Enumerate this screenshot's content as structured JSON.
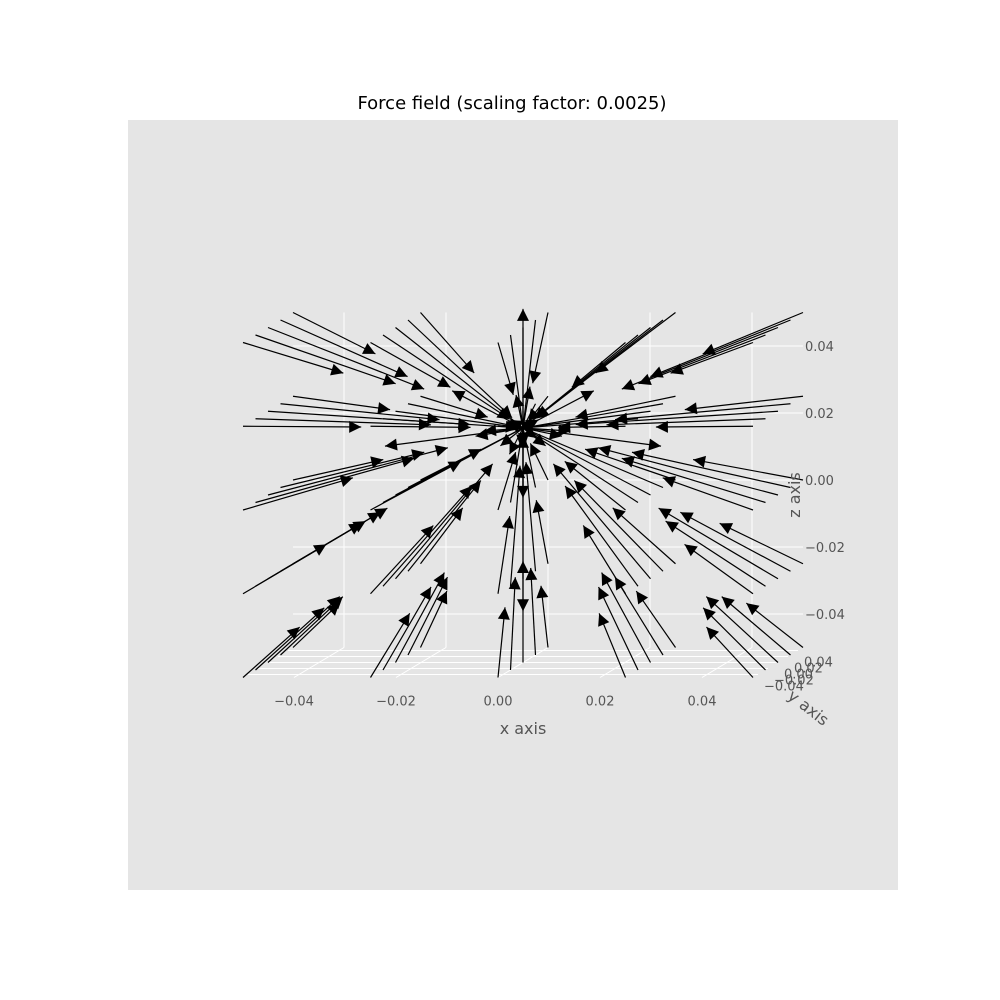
{
  "chart_data": {
    "type": "quiver3d",
    "title": "Force field (scaling factor: 0.0025)",
    "xlabel": "x axis",
    "ylabel": "y axis",
    "zlabel": "z axis",
    "xlim": [
      -0.05,
      0.05
    ],
    "ylim": [
      -0.05,
      0.05
    ],
    "zlim": [
      -0.05,
      0.05
    ],
    "x_ticks": [
      "−0.04",
      "−0.02",
      "0.00",
      "0.02",
      "0.04"
    ],
    "y_ticks": [
      "0.04",
      "0.02",
      "0.00",
      "−0.02",
      "−0.04"
    ],
    "z_ticks": [
      "0.04",
      "0.02",
      "0.00",
      "−0.02",
      "−0.04"
    ],
    "grid": true,
    "background": "#e5e5e5",
    "arrow_color": "#000000",
    "source_point": [
      0.0,
      0.0,
      0.02
    ],
    "field_description": "vectors in a 5x5x5 grid pointing toward a central source point"
  }
}
